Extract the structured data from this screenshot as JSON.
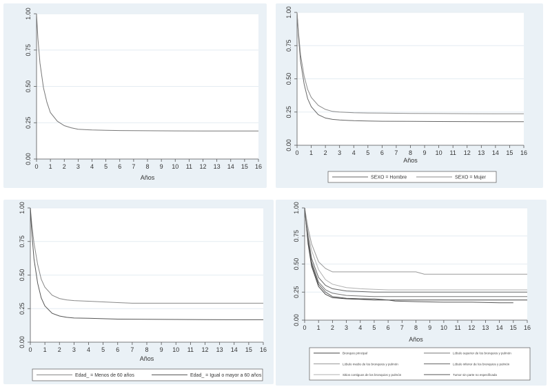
{
  "chart_data": [
    {
      "type": "line",
      "xlabel": "Años",
      "ylabel": "",
      "xlim": [
        0,
        16
      ],
      "ylim": [
        0,
        1
      ],
      "x_ticks": [
        "0",
        "1",
        "2",
        "3",
        "4",
        "5",
        "6",
        "7",
        "8",
        "9",
        "10",
        "11",
        "12",
        "13",
        "14",
        "15",
        "16"
      ],
      "y_ticks": [
        "0.00",
        "0.25",
        "0.50",
        "0.75",
        "1.00"
      ],
      "grid": "horizontal",
      "series": [
        {
          "name": "",
          "color": "#777777",
          "x": [
            0,
            0.1,
            0.25,
            0.5,
            0.75,
            1,
            1.5,
            2,
            2.5,
            3,
            4,
            5,
            6,
            8,
            10,
            12,
            14,
            16
          ],
          "values": [
            1.0,
            0.83,
            0.66,
            0.49,
            0.39,
            0.32,
            0.26,
            0.23,
            0.215,
            0.205,
            0.2,
            0.198,
            0.196,
            0.195,
            0.194,
            0.193,
            0.193,
            0.193
          ]
        }
      ]
    },
    {
      "type": "line",
      "xlabel": "Años",
      "ylabel": "",
      "xlim": [
        0,
        16
      ],
      "ylim": [
        0,
        1
      ],
      "x_ticks": [
        "0",
        "1",
        "2",
        "3",
        "4",
        "5",
        "6",
        "7",
        "8",
        "9",
        "10",
        "11",
        "12",
        "13",
        "14",
        "15",
        "16"
      ],
      "y_ticks": [
        "0.00",
        "0.25",
        "0.50",
        "0.75",
        "1.00"
      ],
      "grid": "horizontal",
      "legend": {
        "position": "bottom"
      },
      "series": [
        {
          "name": "SEXO = Hombre",
          "color": "#666666",
          "x": [
            0,
            0.1,
            0.25,
            0.5,
            0.75,
            1,
            1.5,
            2,
            2.5,
            3,
            4,
            5,
            6,
            8,
            10,
            12,
            14,
            16
          ],
          "values": [
            1.0,
            0.82,
            0.63,
            0.46,
            0.35,
            0.29,
            0.23,
            0.205,
            0.195,
            0.19,
            0.185,
            0.183,
            0.181,
            0.18,
            0.179,
            0.178,
            0.177,
            0.177
          ]
        },
        {
          "name": "SEXO = Mujer",
          "color": "#8a8a8a",
          "x": [
            0,
            0.1,
            0.25,
            0.5,
            0.75,
            1,
            1.5,
            2,
            2.5,
            3,
            4,
            5,
            6,
            8,
            10,
            12,
            14,
            16
          ],
          "values": [
            1.0,
            0.85,
            0.68,
            0.52,
            0.42,
            0.36,
            0.3,
            0.27,
            0.255,
            0.25,
            0.245,
            0.243,
            0.242,
            0.24,
            0.239,
            0.238,
            0.237,
            0.237
          ]
        }
      ]
    },
    {
      "type": "line",
      "xlabel": "Años",
      "ylabel": "",
      "xlim": [
        0,
        16
      ],
      "ylim": [
        0,
        1
      ],
      "x_ticks": [
        "0",
        "1",
        "2",
        "3",
        "4",
        "5",
        "6",
        "7",
        "8",
        "9",
        "10",
        "11",
        "12",
        "13",
        "14",
        "15",
        "16"
      ],
      "y_ticks": [
        "0.00",
        "0.25",
        "0.50",
        "0.75",
        "1.00"
      ],
      "grid": "horizontal",
      "legend": {
        "position": "bottom"
      },
      "series": [
        {
          "name": "Edad_ = Menos de 60 años",
          "color": "#888888",
          "x": [
            0,
            0.1,
            0.25,
            0.5,
            0.75,
            1,
            1.5,
            2,
            2.5,
            3,
            4,
            5,
            6,
            7,
            8,
            10,
            12,
            14,
            16
          ],
          "values": [
            1.0,
            0.88,
            0.74,
            0.58,
            0.47,
            0.41,
            0.35,
            0.325,
            0.315,
            0.31,
            0.305,
            0.3,
            0.295,
            0.29,
            0.29,
            0.29,
            0.29,
            0.29,
            0.29
          ]
        },
        {
          "name": "Edad_ = Igual o mayor a 60 años",
          "color": "#555555",
          "x": [
            0,
            0.1,
            0.25,
            0.5,
            0.75,
            1,
            1.5,
            2,
            2.5,
            3,
            4,
            5,
            6,
            8,
            10,
            12,
            14,
            16
          ],
          "values": [
            1.0,
            0.82,
            0.62,
            0.44,
            0.33,
            0.27,
            0.215,
            0.195,
            0.185,
            0.18,
            0.178,
            0.175,
            0.172,
            0.17,
            0.169,
            0.168,
            0.167,
            0.167
          ]
        }
      ]
    },
    {
      "type": "line",
      "xlabel": "Años",
      "ylabel": "",
      "xlim": [
        0,
        16
      ],
      "ylim": [
        0,
        1
      ],
      "x_ticks": [
        "0",
        "1",
        "2",
        "3",
        "4",
        "5",
        "6",
        "7",
        "8",
        "9",
        "10",
        "11",
        "12",
        "13",
        "14",
        "15",
        "16"
      ],
      "y_ticks": [
        "0.00",
        "0.25",
        "0.50",
        "0.75",
        "1.00"
      ],
      "grid": "horizontal",
      "legend": {
        "position": "bottom",
        "columns": 2
      },
      "series": [
        {
          "name": "Bronquio principal",
          "color": "#444444",
          "x": [
            0,
            0.25,
            0.5,
            1,
            1.5,
            2,
            3,
            4,
            5,
            6,
            8,
            10,
            12,
            14,
            16
          ],
          "values": [
            1.0,
            0.68,
            0.48,
            0.3,
            0.23,
            0.2,
            0.19,
            0.185,
            0.18,
            0.18,
            0.18,
            0.18,
            0.18,
            0.18,
            0.18
          ]
        },
        {
          "name": "Lóbulo superior de los bronquios y pulmón",
          "color": "#777777",
          "x": [
            0,
            0.25,
            0.5,
            1,
            1.5,
            2,
            3,
            4,
            5,
            6,
            8,
            10,
            12,
            14,
            16
          ],
          "values": [
            1.0,
            0.72,
            0.52,
            0.34,
            0.27,
            0.24,
            0.22,
            0.215,
            0.21,
            0.21,
            0.21,
            0.21,
            0.21,
            0.21,
            0.21
          ]
        },
        {
          "name": "Lóbulo medio de los bronquios y pulmón",
          "color": "#999999",
          "x": [
            0,
            0.25,
            0.5,
            1,
            1.5,
            2,
            3,
            4,
            5,
            6,
            8,
            8.6,
            10,
            12,
            14,
            16
          ],
          "values": [
            1.0,
            0.82,
            0.68,
            0.52,
            0.46,
            0.43,
            0.43,
            0.43,
            0.43,
            0.43,
            0.43,
            0.41,
            0.41,
            0.41,
            0.41,
            0.41
          ]
        },
        {
          "name": "Lóbulo inferior de los bronquios y pulmón",
          "color": "#666666",
          "x": [
            0,
            0.25,
            0.5,
            1,
            1.5,
            2,
            3,
            4,
            5,
            6,
            8,
            10,
            12,
            14,
            16
          ],
          "values": [
            1.0,
            0.74,
            0.55,
            0.38,
            0.31,
            0.28,
            0.26,
            0.255,
            0.25,
            0.25,
            0.25,
            0.25,
            0.25,
            0.25,
            0.25
          ]
        },
        {
          "name": "Sitios contiguos de los bronquios y pulmón",
          "color": "#b0b0b0",
          "x": [
            0,
            0.25,
            0.5,
            1,
            1.5,
            2,
            3,
            4,
            5,
            6,
            8,
            10,
            12,
            14,
            16
          ],
          "values": [
            1.0,
            0.78,
            0.62,
            0.45,
            0.36,
            0.32,
            0.29,
            0.28,
            0.275,
            0.27,
            0.27,
            0.27,
            0.27,
            0.27,
            0.27
          ]
        },
        {
          "name": "Tumor sin parte no especificada",
          "color": "#555555",
          "x": [
            0,
            0.25,
            0.5,
            1,
            1.5,
            2,
            3,
            4,
            5,
            6,
            6.5,
            8,
            10,
            12,
            14,
            15
          ],
          "values": [
            1.0,
            0.7,
            0.5,
            0.32,
            0.25,
            0.21,
            0.195,
            0.19,
            0.19,
            0.18,
            0.17,
            0.165,
            0.16,
            0.16,
            0.155,
            0.155
          ]
        }
      ]
    }
  ]
}
